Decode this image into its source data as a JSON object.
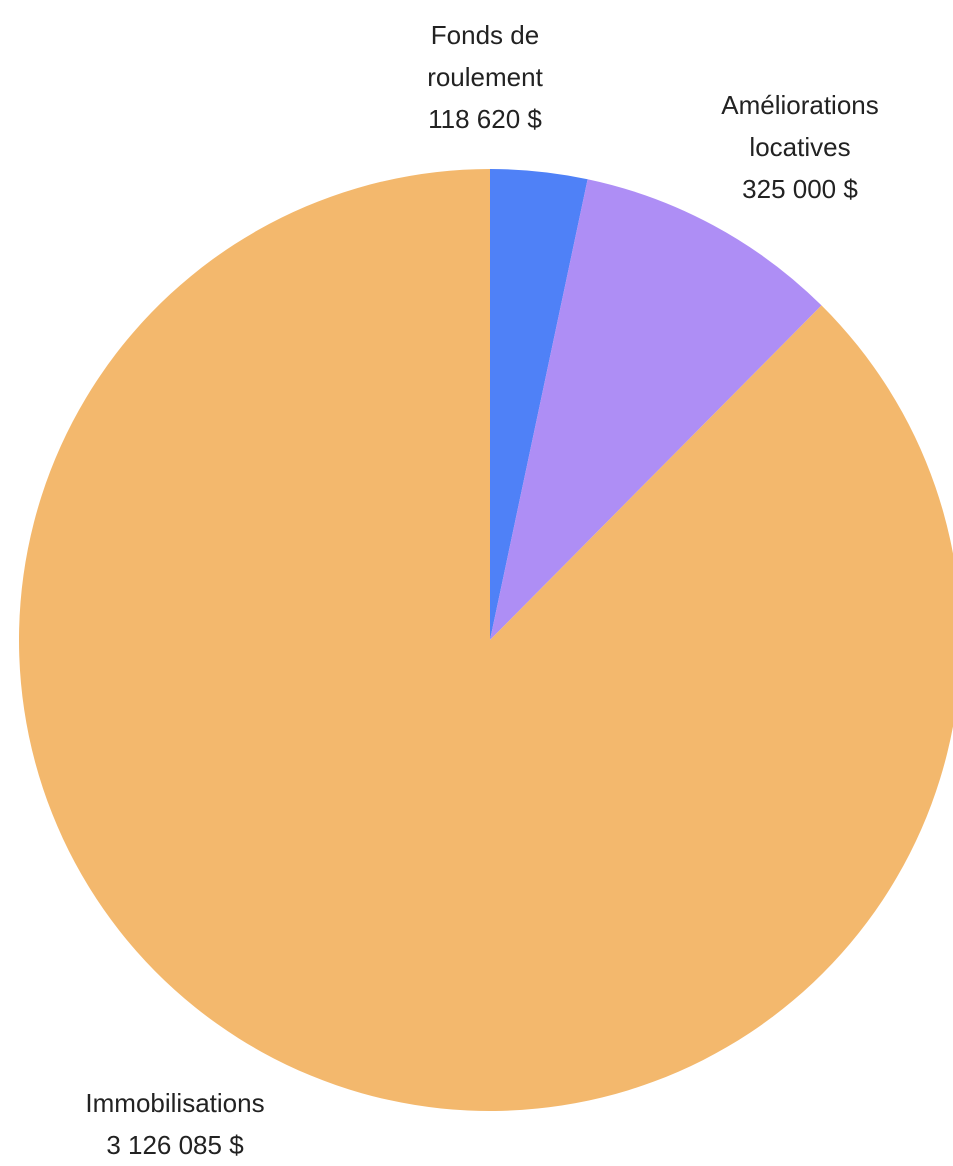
{
  "chart_data": {
    "type": "pie",
    "categories": [
      "Fonds de roulement",
      "Améliorations locatives",
      "Immobilisations"
    ],
    "values": [
      118620,
      325000,
      3126085
    ],
    "value_labels": [
      "118 620 $",
      "325 000 $",
      "3 126 085 $"
    ],
    "colors": [
      "#4f81f7",
      "#ae8ef5",
      "#f3b86d"
    ]
  }
}
